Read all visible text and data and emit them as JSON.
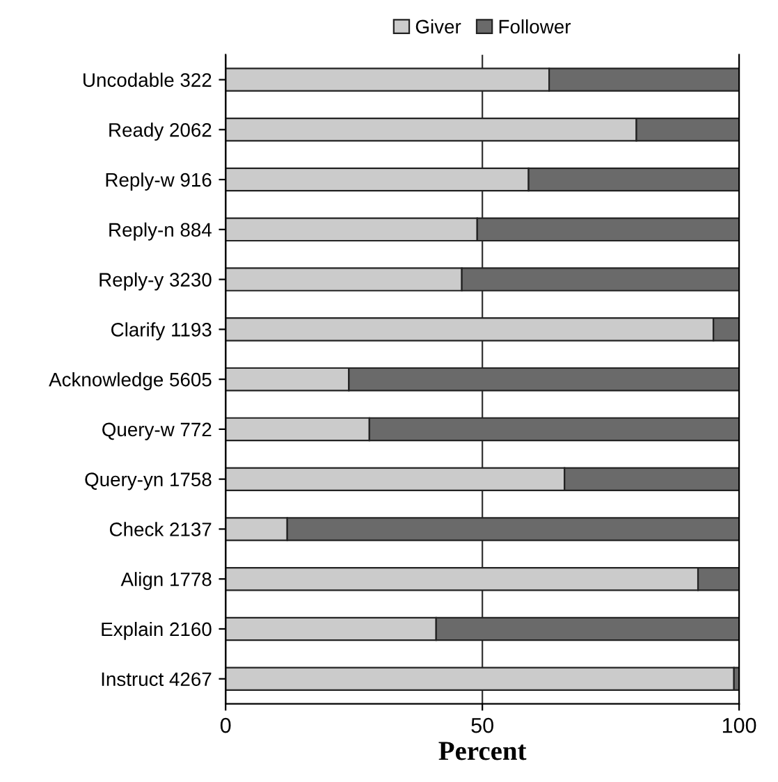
{
  "chart_data": {
    "type": "bar",
    "orientation": "horizontal",
    "stacked": true,
    "xlabel": "Percent",
    "categories": [
      "Uncodable 322",
      "Ready 2062",
      "Reply-w 916",
      "Reply-n 884",
      "Reply-y 3230",
      "Clarify 1193",
      "Acknowledge 5605",
      "Query-w 772",
      "Query-yn 1758",
      "Check 2137",
      "Align 1778",
      "Explain 2160",
      "Instruct 4267"
    ],
    "series": [
      {
        "name": "Giver",
        "color": "#cbcbcb",
        "values": [
          63,
          80,
          59,
          49,
          46,
          95,
          24,
          28,
          66,
          12,
          92,
          41,
          99
        ]
      },
      {
        "name": "Follower",
        "color": "#6a6a6a",
        "values": [
          37,
          20,
          41,
          51,
          54,
          5,
          76,
          72,
          34,
          88,
          8,
          59,
          1
        ]
      }
    ],
    "xlim": [
      0,
      100
    ],
    "xticks": [
      0,
      50,
      100
    ],
    "grid": "x",
    "legend": "top"
  }
}
